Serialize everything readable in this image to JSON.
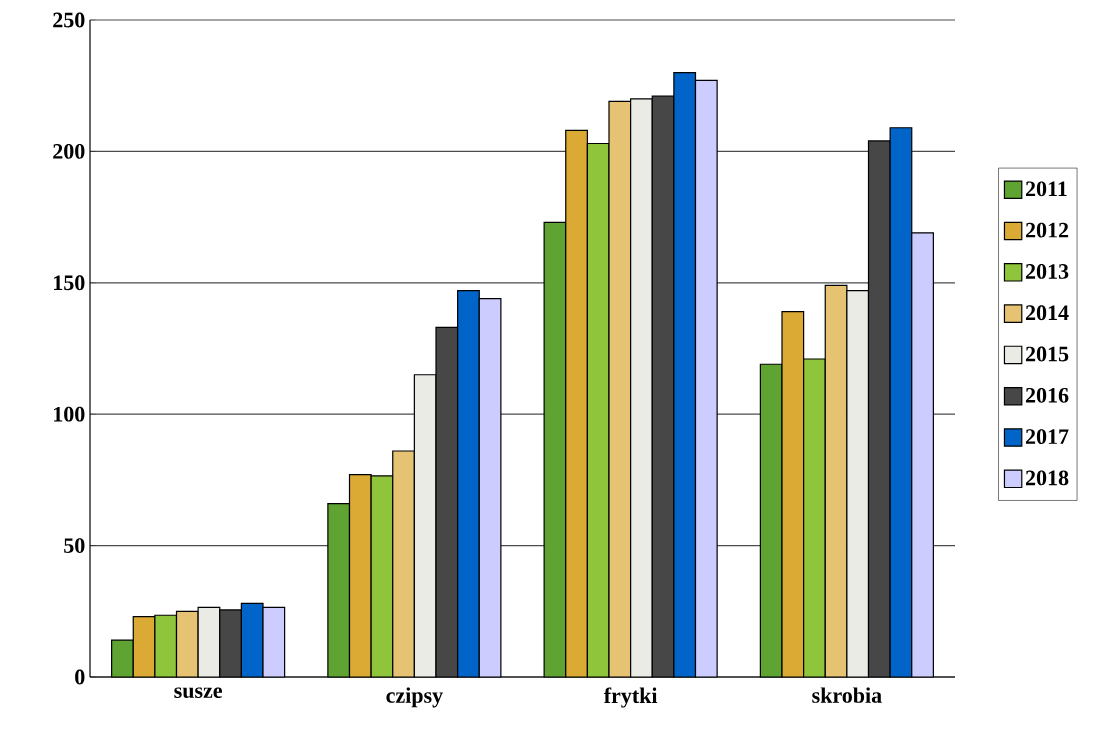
{
  "chart_data": {
    "type": "bar",
    "categories": [
      "susze",
      "czipsy",
      "frytki",
      "skrobia"
    ],
    "series": [
      {
        "name": "2011",
        "color": "#5fa333",
        "values": [
          14,
          66,
          173,
          119
        ]
      },
      {
        "name": "2012",
        "color": "#dbaa35",
        "values": [
          23,
          77,
          208,
          139
        ]
      },
      {
        "name": "2013",
        "color": "#8fc53b",
        "values": [
          23.5,
          76.5,
          203,
          121
        ]
      },
      {
        "name": "2014",
        "color": "#e6c273",
        "values": [
          25,
          86,
          219,
          149
        ]
      },
      {
        "name": "2015",
        "color": "#ebebe6",
        "values": [
          26.5,
          115,
          220,
          147
        ]
      },
      {
        "name": "2016",
        "color": "#474747",
        "values": [
          25.5,
          133,
          221,
          204
        ]
      },
      {
        "name": "2017",
        "color": "#0064c8",
        "values": [
          28,
          147,
          230,
          209
        ]
      },
      {
        "name": "2018",
        "color": "#ccccff",
        "values": [
          26.5,
          144,
          227,
          169
        ]
      }
    ],
    "ylim": [
      0,
      250
    ],
    "yticks": [
      0,
      50,
      100,
      150,
      200,
      250
    ],
    "grid": "y",
    "legend": "right"
  }
}
